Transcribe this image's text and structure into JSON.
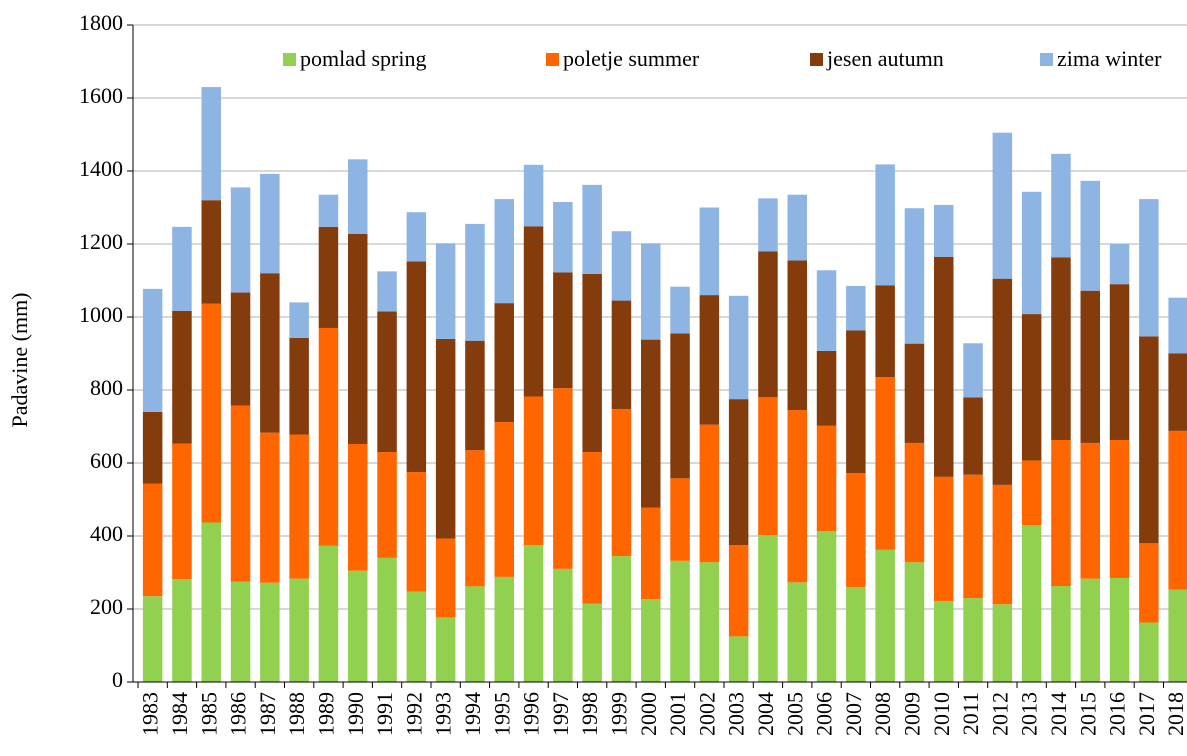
{
  "chart_data": {
    "type": "stacked_bar",
    "y_label": "Padavine (mm)",
    "categories": [
      "1983",
      "1984",
      "1985",
      "1986",
      "1987",
      "1988",
      "1989",
      "1990",
      "1991",
      "1992",
      "1993",
      "1994",
      "1995",
      "1996",
      "1997",
      "1998",
      "1999",
      "2000",
      "2001",
      "2002",
      "2003",
      "2004",
      "2005",
      "2006",
      "2007",
      "2008",
      "2009",
      "2010",
      "2011",
      "2012",
      "2013",
      "2014",
      "2015",
      "2016",
      "2017",
      "2018"
    ],
    "series": [
      {
        "name": "pomlad spring",
        "color": "#92d050",
        "values": [
          235,
          282,
          437,
          275,
          272,
          283,
          373,
          305,
          340,
          248,
          177,
          262,
          288,
          375,
          310,
          215,
          345,
          227,
          332,
          328,
          125,
          402,
          273,
          413,
          260,
          362,
          328,
          222,
          230,
          213,
          430,
          263,
          283,
          285,
          163,
          253
        ]
      },
      {
        "name": "poletje summer",
        "color": "#ff6600",
        "values": [
          308,
          371,
          600,
          482,
          411,
          395,
          597,
          347,
          290,
          327,
          216,
          373,
          424,
          407,
          495,
          415,
          403,
          251,
          226,
          377,
          250,
          378,
          472,
          289,
          312,
          473,
          327,
          340,
          338,
          327,
          177,
          400,
          372,
          378,
          217,
          435
        ]
      },
      {
        "name": "jesen autumn",
        "color": "#843c0c",
        "values": [
          197,
          364,
          283,
          310,
          437,
          265,
          277,
          576,
          385,
          577,
          547,
          300,
          326,
          466,
          317,
          488,
          297,
          460,
          397,
          355,
          400,
          400,
          410,
          205,
          391,
          252,
          272,
          603,
          212,
          565,
          401,
          500,
          417,
          427,
          567,
          212
        ]
      },
      {
        "name": "zima winter",
        "color": "#8db4e2",
        "values": [
          337,
          230,
          310,
          288,
          272,
          97,
          88,
          204,
          110,
          135,
          262,
          320,
          285,
          169,
          193,
          244,
          190,
          264,
          128,
          240,
          283,
          145,
          180,
          221,
          122,
          331,
          371,
          142,
          148,
          400,
          335,
          284,
          301,
          110,
          376,
          153
        ]
      }
    ],
    "ylim": [
      0,
      1800
    ],
    "yticks": [
      0,
      200,
      400,
      600,
      800,
      1000,
      1200,
      1400,
      1600,
      1800
    ],
    "grid": true,
    "legend": "top"
  }
}
